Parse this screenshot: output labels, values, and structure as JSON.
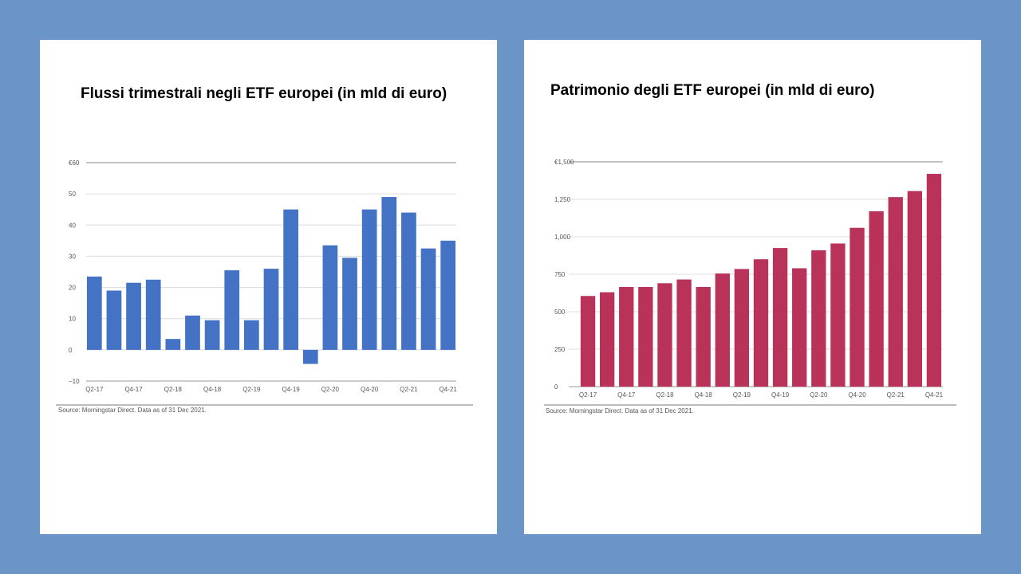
{
  "chart_data": [
    {
      "id": "flows",
      "type": "bar",
      "title": "Flussi trimestrali  negli ETF europei (in mld di euro)",
      "source": "Source: Morningstar Direct. Data as of 31 Dec 2021.",
      "color": "#4472c4",
      "ylim": [
        -10,
        60
      ],
      "yticks": [
        -10,
        0,
        10,
        20,
        30,
        40,
        50,
        60
      ],
      "ytick_labels": [
        "−10",
        "0",
        "10",
        "20",
        "30",
        "40",
        "50",
        "€60"
      ],
      "categories": [
        "Q2-17",
        "Q3-17",
        "Q4-17",
        "Q1-18",
        "Q2-18",
        "Q3-18",
        "Q4-18",
        "Q1-19",
        "Q2-19",
        "Q3-19",
        "Q4-19",
        "Q1-20",
        "Q2-20",
        "Q3-20",
        "Q4-20",
        "Q1-21",
        "Q2-21",
        "Q3-21",
        "Q4-21"
      ],
      "xtick_labels": [
        "Q2-17",
        "",
        "Q4-17",
        "",
        "Q2-18",
        "",
        "Q4-18",
        "",
        "Q2-19",
        "",
        "Q4-19",
        "",
        "Q2-20",
        "",
        "Q4-20",
        "",
        "Q2-21",
        "",
        "Q4-21"
      ],
      "values": [
        23.5,
        19,
        21.5,
        22.5,
        3.5,
        11,
        9.5,
        25.5,
        9.5,
        26,
        45,
        -4.5,
        33.5,
        29.5,
        45,
        49,
        44,
        32.5,
        35
      ]
    },
    {
      "id": "aum",
      "type": "bar",
      "title": "Patrimonio  degli ETF europei (in mld di euro)",
      "source": "Source: Morningstar Direct. Data as of 31 Dec 2021.",
      "color": "#b8325a",
      "ylim": [
        0,
        1500
      ],
      "yticks": [
        0,
        250,
        500,
        750,
        1000,
        1250,
        1500
      ],
      "ytick_labels": [
        "0",
        "250",
        "500",
        "750",
        "1,000",
        "1,250",
        "€1,500"
      ],
      "categories": [
        "Q2-17",
        "Q3-17",
        "Q4-17",
        "Q1-18",
        "Q2-18",
        "Q3-18",
        "Q4-18",
        "Q1-19",
        "Q2-19",
        "Q3-19",
        "Q4-19",
        "Q1-20",
        "Q2-20",
        "Q3-20",
        "Q4-20",
        "Q1-21",
        "Q2-21",
        "Q3-21",
        "Q4-21"
      ],
      "xtick_labels": [
        "Q2-17",
        "",
        "Q4-17",
        "",
        "Q2-18",
        "",
        "Q4-18",
        "",
        "Q2-19",
        "",
        "Q4-19",
        "",
        "Q2-20",
        "",
        "Q4-20",
        "",
        "Q2-21",
        "",
        "Q4-21"
      ],
      "values": [
        605,
        630,
        665,
        665,
        690,
        715,
        665,
        755,
        785,
        850,
        925,
        790,
        910,
        955,
        1060,
        1170,
        1265,
        1305,
        1420
      ]
    }
  ]
}
